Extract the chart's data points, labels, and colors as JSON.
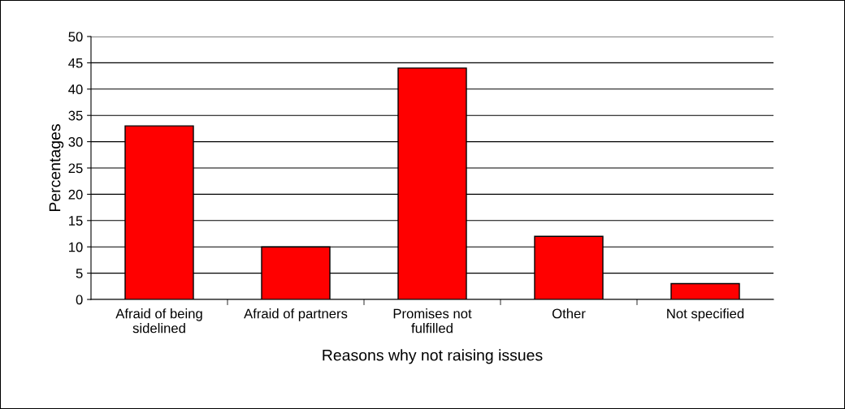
{
  "chart_data": {
    "type": "bar",
    "xlabel": "Reasons why not raising issues",
    "ylabel": "Percentages",
    "categories": [
      "Afraid of being\nsidelined",
      "Afraid of partners",
      "Promises not\nfulfilled",
      "Other",
      "Not specified"
    ],
    "values": [
      33,
      10,
      44,
      12,
      3
    ],
    "color": "#ff0000",
    "ylim": [
      0,
      50
    ],
    "yticks": [
      0,
      5,
      10,
      15,
      20,
      25,
      30,
      35,
      40,
      45,
      50
    ],
    "grid": "y",
    "legend": false
  }
}
